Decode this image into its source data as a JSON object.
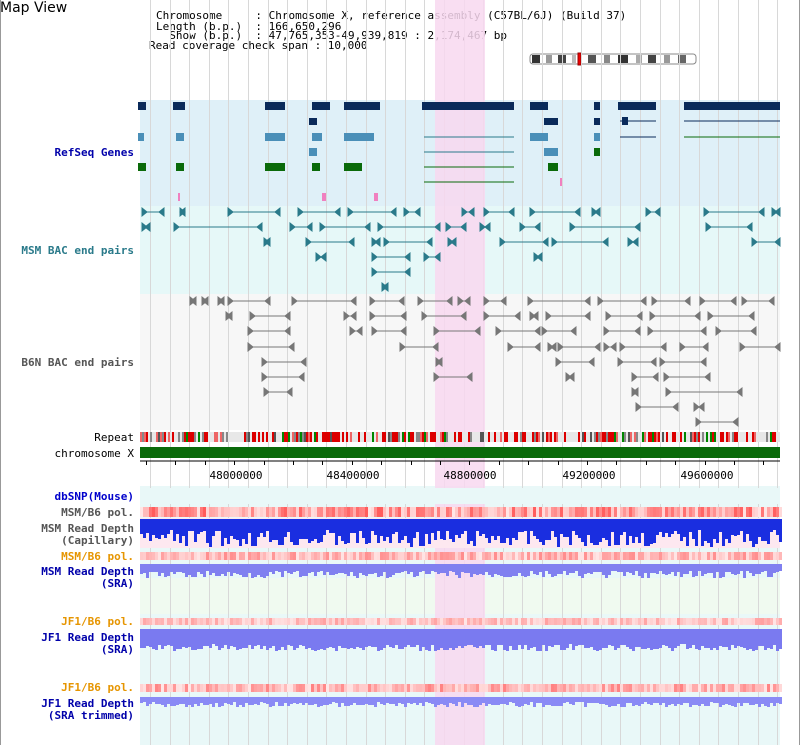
{
  "app": {
    "title": "Map View"
  },
  "header": {
    "chromosome_line": "Chromosome     : Chromosome X, reference assembly (C57BL/6J) (Build 37)",
    "length_line": "Length (b.p.)  : 166,650,296",
    "show_line": "  Show (b.p.)  : 47,765,353-49,939,819 : 2,174,467 bp",
    "coverage_line": "Read coverage check span : 10,000"
  },
  "tracks": {
    "refseq": {
      "label": "RefSeq Genes",
      "color": "#0000aa"
    },
    "msm_bac": {
      "label": "MSM BAC end pairs",
      "color": "#2a7a8a"
    },
    "b6n_bac": {
      "label": "B6N BAC end pairs",
      "color": "#555555"
    },
    "repeat": {
      "label": "Repeat"
    },
    "chromosome": {
      "label": "chromosome X"
    },
    "dbsnp": {
      "label": "dbSNP(Mouse)",
      "color": "#0000cc"
    },
    "msm_b6_pol_1": {
      "label": "MSM/B6 pol.",
      "color": "#555555"
    },
    "msm_read_depth_cap": {
      "label_line1": "MSM Read Depth",
      "label_line2": "(Capillary)",
      "color": "#555555"
    },
    "msm_b6_pol_2": {
      "label": "MSM/B6 pol.",
      "color": "#e69500"
    },
    "msm_read_depth_sra": {
      "label_line1": "MSM Read Depth",
      "label_line2": "(SRA)",
      "color": "#0000aa"
    },
    "jf1_b6_pol_1": {
      "label": "JF1/B6 pol.",
      "color": "#e69500"
    },
    "jf1_read_depth_sra": {
      "label_line1": "JF1 Read Depth",
      "label_line2": "(SRA)",
      "color": "#0000aa"
    },
    "jf1_b6_pol_2": {
      "label": "JF1/B6 pol.",
      "color": "#e69500"
    },
    "jf1_read_depth_trim": {
      "label_line1": "JF1 Read Depth",
      "label_line2": "(SRA trimmed)",
      "color": "#0000aa"
    }
  },
  "axis": {
    "ticks": [
      "48000000",
      "48400000",
      "48800000",
      "49200000",
      "49600000"
    ]
  },
  "colors": {
    "highlight": "#f8d8f0",
    "refseq_bg": "#dff0f8",
    "msm_bg": "#e6f8f8",
    "b6n_bg": "#f6f6f6",
    "dark_gene": "#0a2a5a",
    "mid_gene": "#4a8fb8",
    "green_gene": "#0a6a0a"
  }
}
